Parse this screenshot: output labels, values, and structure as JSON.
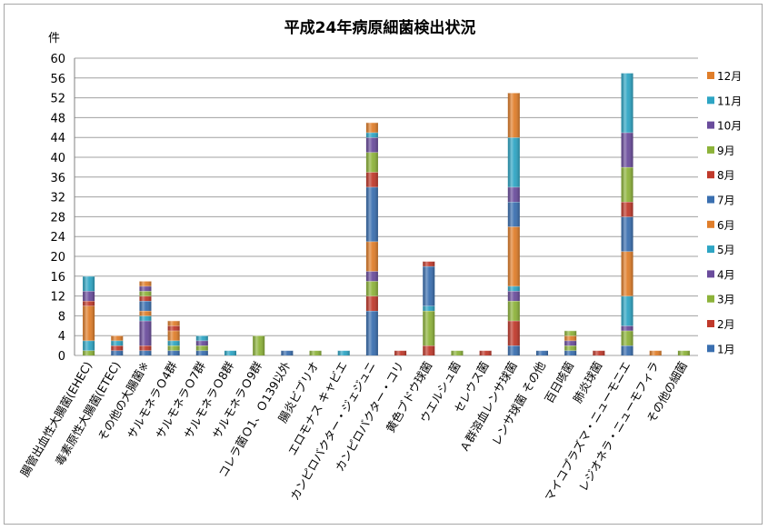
{
  "chart_data": {
    "type": "bar",
    "stacked": true,
    "title": "平成24年病原細菌検出状況",
    "ylabel": "件",
    "ylim": [
      0,
      60
    ],
    "yticks": [
      0,
      4,
      8,
      12,
      16,
      20,
      24,
      28,
      32,
      36,
      40,
      44,
      48,
      52,
      56,
      60
    ],
    "grid": true,
    "legend_position": "right",
    "categories": [
      "腸管出血性大腸菌(EHEC)",
      "毒素原性大腸菌(ETEC)",
      "その他の大腸菌※",
      "サルモネラＯ4群",
      "サルモネラＯ7群",
      "サルモネラＯ8群",
      "サルモネラＯ9群",
      "コレラ菌Ｏ1、Ｏ139以外",
      "腸炎ビブリオ",
      "エロモナス キャビエ",
      "カンピロバクター・ジェジュニ",
      "カンピロバクター・コリ",
      "黄色ブドウ球菌",
      "ウエルシュ菌",
      "セレウス菌",
      "Ａ群溶血レンサ球菌",
      "レンサ球菌 その他",
      "百日咳菌",
      "肺炎球菌",
      "マイコプラズマ・ニューモニエ",
      "レジオネラ・ニューモフィラ",
      "その他の細菌"
    ],
    "series": [
      {
        "name": "1月",
        "color": "#3A6FB0",
        "values": [
          0,
          1,
          1,
          1,
          1,
          0,
          0,
          0,
          0,
          0,
          9,
          0,
          0,
          0,
          0,
          2,
          0,
          1,
          0,
          2,
          0,
          0
        ]
      },
      {
        "name": "2月",
        "color": "#C0392B",
        "values": [
          0,
          1,
          1,
          0,
          0,
          0,
          0,
          0,
          0,
          0,
          3,
          1,
          2,
          0,
          1,
          5,
          0,
          0,
          1,
          0,
          0,
          0
        ]
      },
      {
        "name": "3月",
        "color": "#8DB33A",
        "values": [
          1,
          0,
          0,
          1,
          1,
          0,
          4,
          0,
          1,
          0,
          3,
          0,
          7,
          1,
          0,
          4,
          0,
          1,
          0,
          3,
          0,
          1
        ]
      },
      {
        "name": "4月",
        "color": "#6A4C9C",
        "values": [
          0,
          0,
          5,
          0,
          1,
          0,
          0,
          0,
          0,
          0,
          2,
          0,
          0,
          0,
          0,
          2,
          0,
          1,
          0,
          1,
          0,
          0
        ]
      },
      {
        "name": "5月",
        "color": "#2EA5C4",
        "values": [
          2,
          1,
          1,
          1,
          1,
          1,
          0,
          0,
          0,
          1,
          0,
          0,
          1,
          0,
          0,
          1,
          0,
          0,
          0,
          6,
          0,
          0
        ]
      },
      {
        "name": "6月",
        "color": "#E07E2A",
        "values": [
          7,
          1,
          1,
          2,
          0,
          0,
          0,
          0,
          0,
          0,
          6,
          0,
          0,
          0,
          0,
          12,
          0,
          1,
          0,
          9,
          1,
          0
        ]
      },
      {
        "name": "7月",
        "color": "#3A6FB0",
        "values": [
          0,
          0,
          2,
          0,
          0,
          0,
          0,
          1,
          0,
          0,
          11,
          0,
          8,
          0,
          0,
          5,
          1,
          0,
          0,
          7,
          0,
          0
        ]
      },
      {
        "name": "8月",
        "color": "#C0392B",
        "values": [
          1,
          0,
          1,
          1,
          0,
          0,
          0,
          0,
          0,
          0,
          3,
          0,
          1,
          0,
          0,
          0,
          0,
          0,
          0,
          3,
          0,
          0
        ]
      },
      {
        "name": "9月",
        "color": "#8DB33A",
        "values": [
          0,
          0,
          1,
          0,
          0,
          0,
          0,
          0,
          0,
          0,
          4,
          0,
          0,
          0,
          0,
          0,
          0,
          1,
          0,
          7,
          0,
          0
        ]
      },
      {
        "name": "10月",
        "color": "#6A4C9C",
        "values": [
          2,
          0,
          1,
          0,
          0,
          0,
          0,
          0,
          0,
          0,
          3,
          0,
          0,
          0,
          0,
          3,
          0,
          0,
          0,
          7,
          0,
          0
        ]
      },
      {
        "name": "11月",
        "color": "#2EA5C4",
        "values": [
          3,
          0,
          0,
          0,
          0,
          0,
          0,
          0,
          0,
          0,
          1,
          0,
          0,
          0,
          0,
          10,
          0,
          0,
          0,
          12,
          0,
          0
        ]
      },
      {
        "name": "12月",
        "color": "#E07E2A",
        "values": [
          0,
          0,
          1,
          1,
          0,
          0,
          0,
          0,
          0,
          0,
          2,
          0,
          0,
          0,
          0,
          9,
          0,
          0,
          0,
          0,
          0,
          0
        ]
      }
    ]
  }
}
